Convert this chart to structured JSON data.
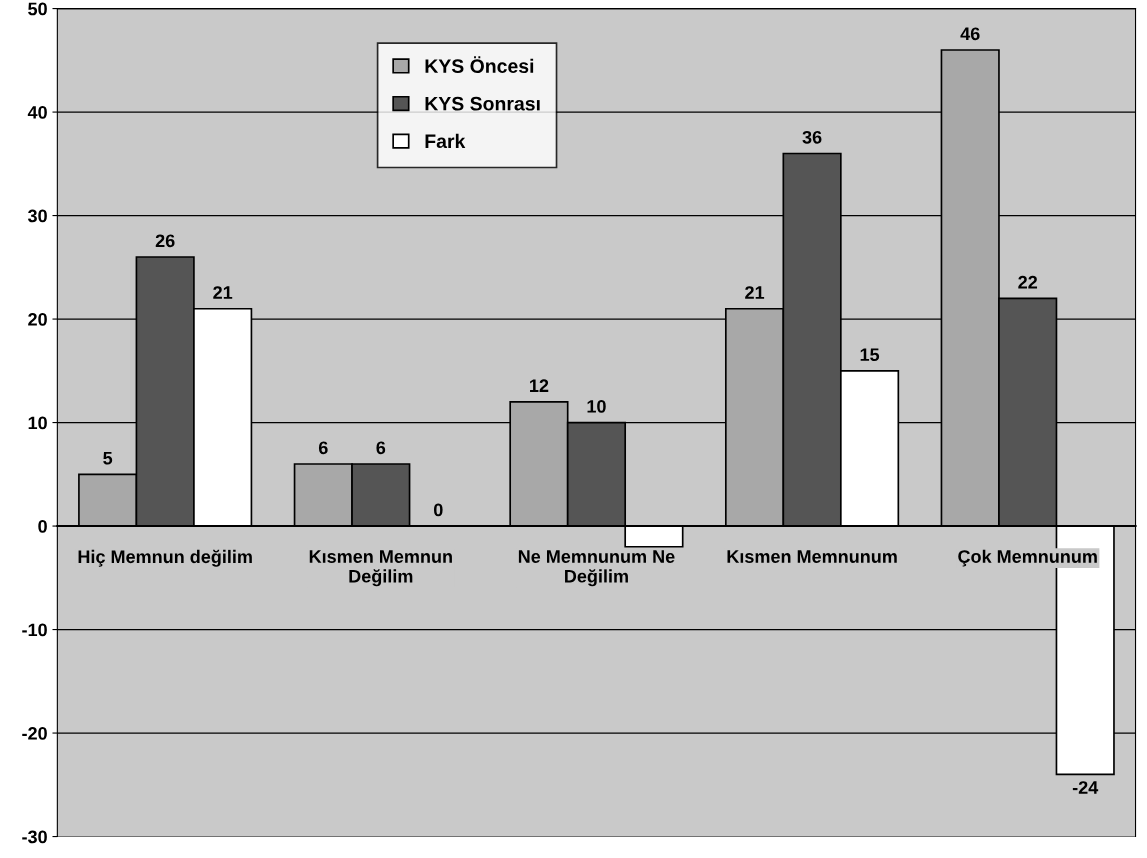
{
  "chart_data": {
    "type": "bar",
    "categories": [
      "Hiç Memnun değilim",
      "Kısmen Memnun\nDeğilim",
      "Ne Memnunum Ne\nDeğilim",
      "Kısmen Memnunum",
      "Çok Memnunum"
    ],
    "series": [
      {
        "name": "KYS Öncesi",
        "color": "#a8a8a8",
        "values": [
          5,
          6,
          12,
          21,
          46
        ],
        "value_labels": [
          "5",
          "6",
          "12",
          "21",
          "46"
        ]
      },
      {
        "name": "KYS Sonrası",
        "color": "#555555",
        "values": [
          26,
          6,
          10,
          36,
          22
        ],
        "value_labels": [
          "26",
          "6",
          "10",
          "36",
          "22"
        ]
      },
      {
        "name": "Fark",
        "color": "#ffffff",
        "values": [
          21,
          0,
          -2,
          15,
          -24
        ],
        "value_labels": [
          "21",
          "0",
          null,
          "15",
          "-24"
        ]
      }
    ],
    "ylim": [
      -30,
      50
    ],
    "yticks": [
      -30,
      -20,
      -10,
      0,
      10,
      20,
      30,
      40,
      50
    ],
    "grid": "y",
    "legend": "top"
  }
}
